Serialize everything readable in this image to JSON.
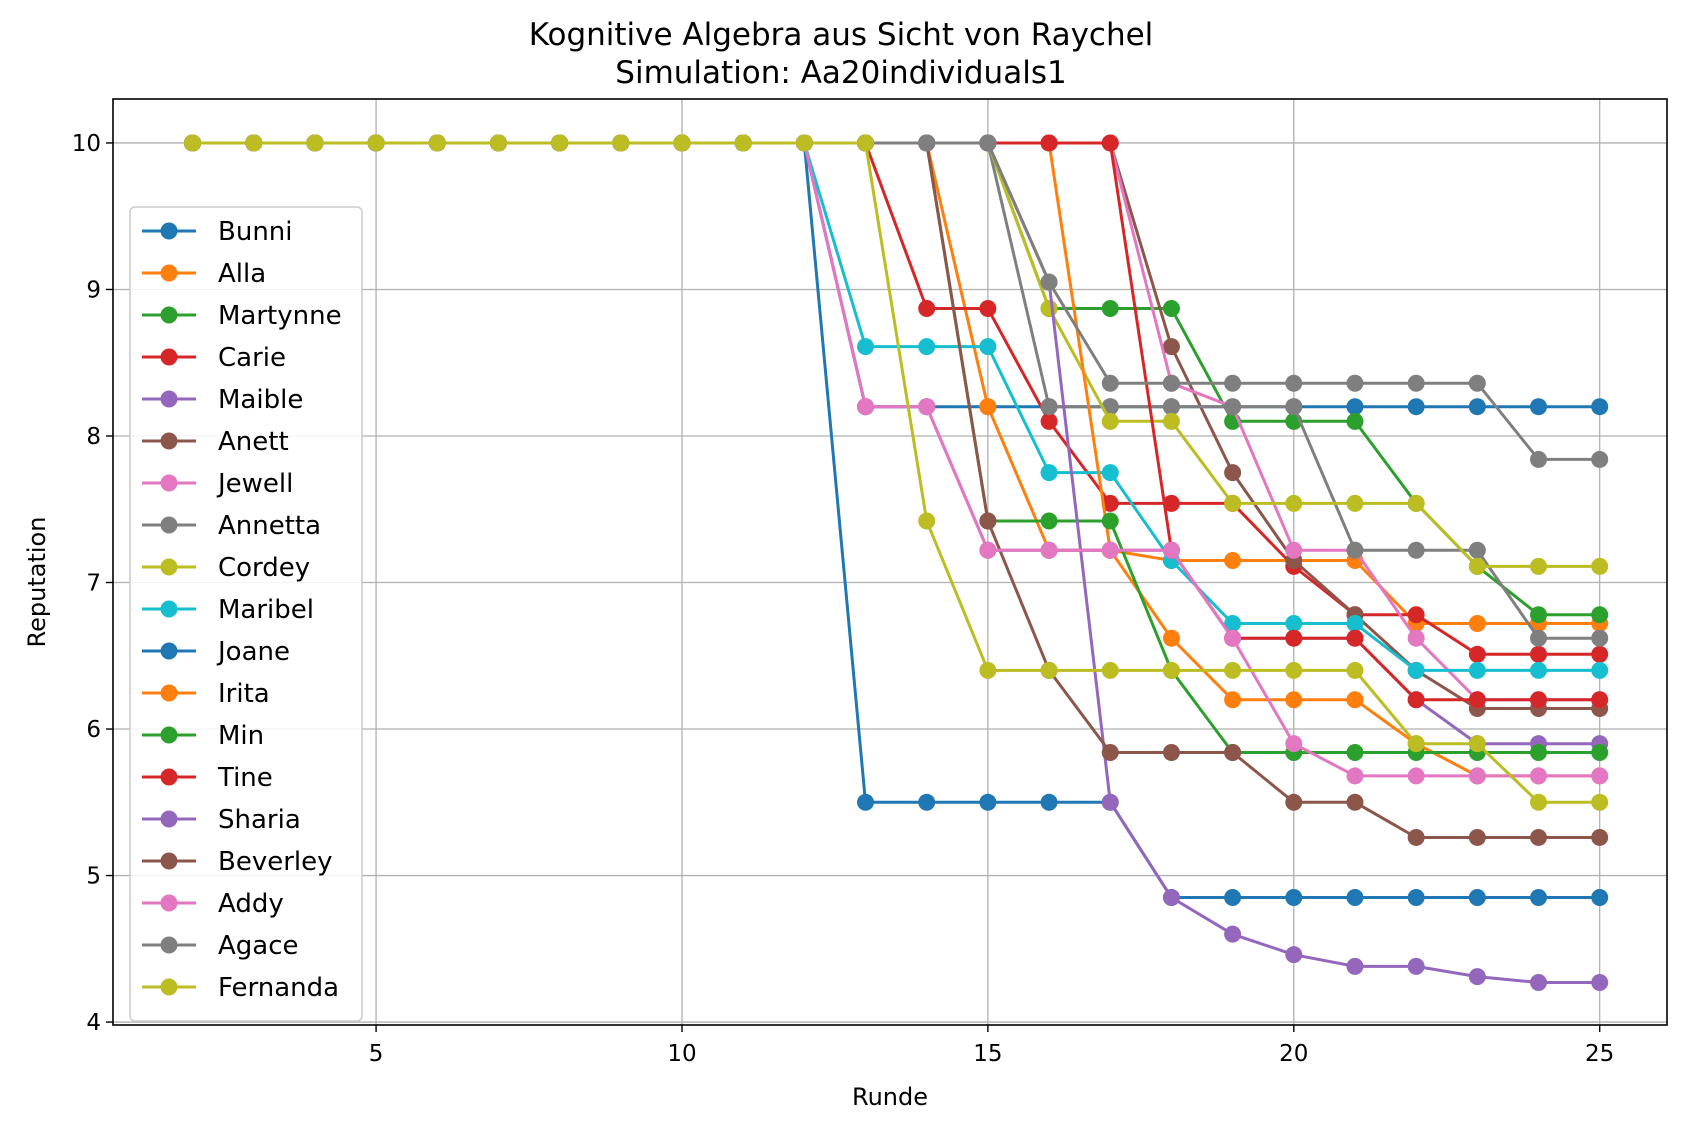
{
  "chart_data": {
    "type": "line",
    "title": "Kognitive Algebra aus Sicht von Raychel",
    "subtitle": "Simulation: Aa20individuals1",
    "xlabel": "Runde",
    "ylabel": "Reputation",
    "xlim": [
      0.7,
      26.1
    ],
    "ylim": [
      3.98,
      10.3
    ],
    "xticks": [
      5,
      10,
      15,
      20,
      25
    ],
    "yticks": [
      4,
      5,
      6,
      7,
      8,
      9,
      10
    ],
    "grid": true,
    "legend_position": "left",
    "x": [
      2,
      3,
      4,
      5,
      6,
      7,
      8,
      9,
      10,
      11,
      12,
      13,
      14,
      15,
      16,
      17,
      18,
      19,
      20,
      21,
      22,
      23,
      24,
      25
    ],
    "series": [
      {
        "name": "Bunni",
        "color": "#1f77b4",
        "values": [
          10,
          10,
          10,
          10,
          10,
          10,
          10,
          10,
          10,
          10,
          10,
          8.2,
          8.2,
          8.2,
          8.2,
          8.2,
          8.2,
          8.2,
          8.2,
          8.2,
          8.2,
          8.2,
          8.2,
          8.2
        ]
      },
      {
        "name": "Alla",
        "color": "#ff7f0e",
        "values": [
          10,
          10,
          10,
          10,
          10,
          10,
          10,
          10,
          10,
          10,
          10,
          10,
          10,
          8.2,
          7.22,
          7.22,
          7.15,
          7.15,
          7.15,
          7.15,
          6.72,
          6.72,
          6.72,
          6.72
        ]
      },
      {
        "name": "Martynne",
        "color": "#2ca02c",
        "values": [
          10,
          10,
          10,
          10,
          10,
          10,
          10,
          10,
          10,
          10,
          10,
          10,
          10,
          10,
          8.87,
          8.87,
          8.87,
          8.1,
          8.1,
          8.1,
          7.54,
          7.11,
          6.78,
          6.78
        ]
      },
      {
        "name": "Carie",
        "color": "#d62728",
        "values": [
          10,
          10,
          10,
          10,
          10,
          10,
          10,
          10,
          10,
          10,
          10,
          10,
          8.87,
          8.87,
          8.1,
          7.54,
          7.54,
          7.54,
          7.11,
          6.78,
          6.78,
          6.51,
          6.51,
          6.51
        ]
      },
      {
        "name": "Maible",
        "color": "#9467bd",
        "values": [
          10,
          10,
          10,
          10,
          10,
          10,
          10,
          10,
          10,
          10,
          10,
          8.2,
          8.2,
          7.22,
          7.22,
          7.22,
          7.22,
          6.62,
          6.62,
          6.62,
          6.2,
          5.9,
          5.9,
          5.9
        ]
      },
      {
        "name": "Anett",
        "color": "#8c564b",
        "values": [
          10,
          10,
          10,
          10,
          10,
          10,
          10,
          10,
          10,
          10,
          10,
          10,
          10,
          10,
          10,
          10,
          8.61,
          7.75,
          7.15,
          6.78,
          6.4,
          6.14,
          6.14,
          6.14
        ]
      },
      {
        "name": "Jewell",
        "color": "#e377c2",
        "values": [
          10,
          10,
          10,
          10,
          10,
          10,
          10,
          10,
          10,
          10,
          10,
          10,
          10,
          10,
          10,
          10,
          8.36,
          8.2,
          7.22,
          7.22,
          6.62,
          6.2,
          6.2,
          6.2
        ]
      },
      {
        "name": "Annetta",
        "color": "#7f7f7f",
        "values": [
          10,
          10,
          10,
          10,
          10,
          10,
          10,
          10,
          10,
          10,
          10,
          10,
          10,
          10,
          8.2,
          8.2,
          8.2,
          8.2,
          8.2,
          7.22,
          7.22,
          7.22,
          6.62,
          6.62
        ]
      },
      {
        "name": "Cordey",
        "color": "#bcbd22",
        "values": [
          10,
          10,
          10,
          10,
          10,
          10,
          10,
          10,
          10,
          10,
          10,
          10,
          10,
          10,
          8.87,
          8.1,
          8.1,
          7.54,
          7.54,
          7.54,
          7.54,
          7.11,
          7.11,
          7.11
        ]
      },
      {
        "name": "Maribel",
        "color": "#17becf",
        "values": [
          10,
          10,
          10,
          10,
          10,
          10,
          10,
          10,
          10,
          10,
          10,
          8.61,
          8.61,
          8.61,
          7.75,
          7.75,
          7.15,
          6.72,
          6.72,
          6.72,
          6.4,
          6.4,
          6.4,
          6.4
        ]
      },
      {
        "name": "Joane",
        "color": "#1f77b4",
        "values": [
          10,
          10,
          10,
          10,
          10,
          10,
          10,
          10,
          10,
          10,
          10,
          5.5,
          5.5,
          5.5,
          5.5,
          5.5,
          4.85,
          4.85,
          4.85,
          4.85,
          4.85,
          4.85,
          4.85,
          4.85
        ]
      },
      {
        "name": "Irita",
        "color": "#ff7f0e",
        "values": [
          10,
          10,
          10,
          10,
          10,
          10,
          10,
          10,
          10,
          10,
          10,
          10,
          10,
          10,
          10,
          7.22,
          6.62,
          6.2,
          6.2,
          6.2,
          5.9,
          5.68,
          5.68,
          5.68
        ]
      },
      {
        "name": "Min",
        "color": "#2ca02c",
        "values": [
          10,
          10,
          10,
          10,
          10,
          10,
          10,
          10,
          10,
          10,
          10,
          10,
          10,
          7.42,
          7.42,
          7.42,
          6.4,
          5.84,
          5.84,
          5.84,
          5.84,
          5.84,
          5.84,
          5.84
        ]
      },
      {
        "name": "Tine",
        "color": "#d62728",
        "values": [
          10,
          10,
          10,
          10,
          10,
          10,
          10,
          10,
          10,
          10,
          10,
          10,
          10,
          10,
          10,
          10,
          7.22,
          6.62,
          6.62,
          6.62,
          6.2,
          6.2,
          6.2,
          6.2
        ]
      },
      {
        "name": "Sharia",
        "color": "#9467bd",
        "values": [
          10,
          10,
          10,
          10,
          10,
          10,
          10,
          10,
          10,
          10,
          10,
          10,
          10,
          10,
          9.05,
          5.5,
          4.85,
          4.6,
          4.46,
          4.38,
          4.38,
          4.31,
          4.27,
          4.27
        ]
      },
      {
        "name": "Beverley",
        "color": "#8c564b",
        "values": [
          10,
          10,
          10,
          10,
          10,
          10,
          10,
          10,
          10,
          10,
          10,
          10,
          10,
          7.42,
          6.4,
          5.84,
          5.84,
          5.84,
          5.5,
          5.5,
          5.26,
          5.26,
          5.26,
          5.26
        ]
      },
      {
        "name": "Addy",
        "color": "#e377c2",
        "values": [
          10,
          10,
          10,
          10,
          10,
          10,
          10,
          10,
          10,
          10,
          10,
          8.2,
          8.2,
          7.22,
          7.22,
          7.22,
          7.22,
          6.62,
          5.9,
          5.68,
          5.68,
          5.68,
          5.68,
          5.68
        ]
      },
      {
        "name": "Agace",
        "color": "#7f7f7f",
        "values": [
          10,
          10,
          10,
          10,
          10,
          10,
          10,
          10,
          10,
          10,
          10,
          10,
          10,
          10,
          9.05,
          8.36,
          8.36,
          8.36,
          8.36,
          8.36,
          8.36,
          8.36,
          7.84,
          7.84
        ]
      },
      {
        "name": "Fernanda",
        "color": "#bcbd22",
        "values": [
          10,
          10,
          10,
          10,
          10,
          10,
          10,
          10,
          10,
          10,
          10,
          10,
          7.42,
          6.4,
          6.4,
          6.4,
          6.4,
          6.4,
          6.4,
          6.4,
          5.9,
          5.9,
          5.5,
          5.5
        ]
      }
    ]
  }
}
